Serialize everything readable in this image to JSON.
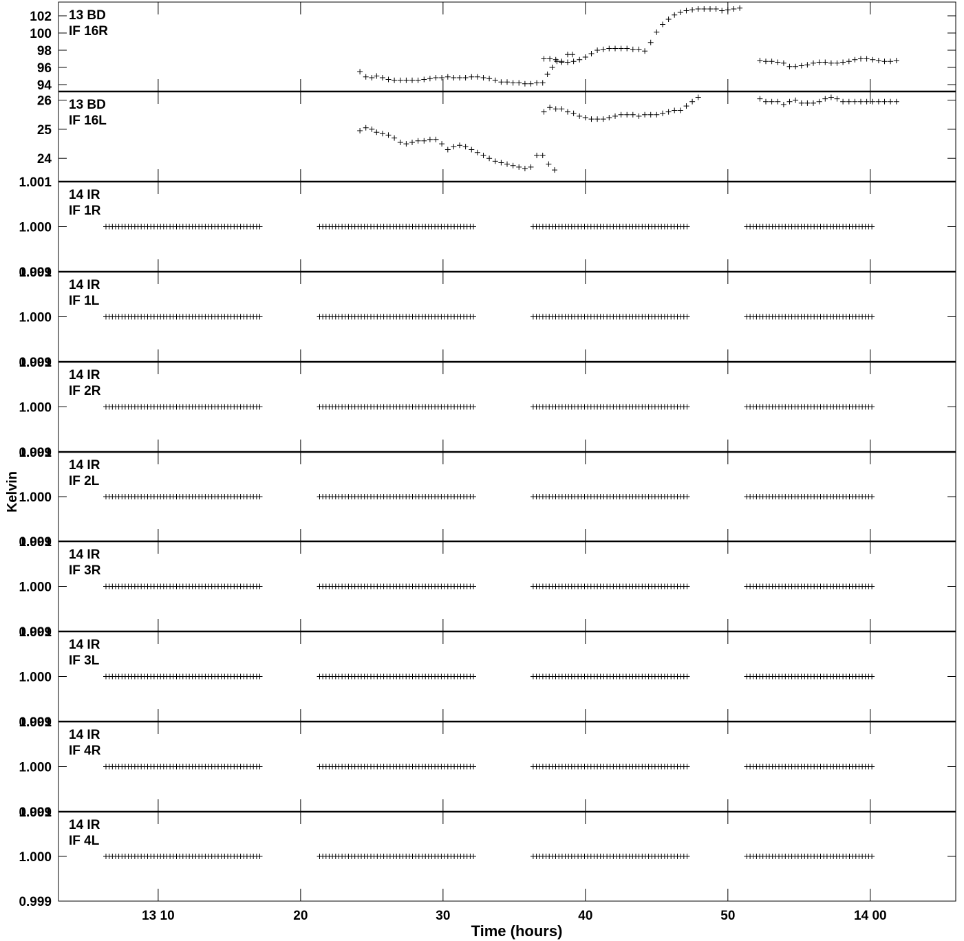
{
  "chart_data": {
    "type": "scatter",
    "xlabel": "Time (hours)",
    "ylabel": "Kelvin",
    "xlim": [
      "13:03",
      "14:06"
    ],
    "x_ticks": [
      {
        "time": "13:10",
        "label": "13 10"
      },
      {
        "time": "13:20",
        "label": "20"
      },
      {
        "time": "13:30",
        "label": "30"
      },
      {
        "time": "13:40",
        "label": "40"
      },
      {
        "time": "13:50",
        "label": "50"
      },
      {
        "time": "14:00",
        "label": "14 00"
      }
    ],
    "panels": [
      {
        "label": [
          "13 BD",
          "IF 16R"
        ],
        "ylim": [
          93.2,
          103.6
        ],
        "ticks": [
          {
            "value": 94,
            "label": "94"
          },
          {
            "value": 96,
            "label": "96"
          },
          {
            "value": 98,
            "label": "98"
          },
          {
            "value": 100,
            "label": "100"
          },
          {
            "value": 102,
            "label": "102"
          }
        ],
        "points": [
          [
            "13:24:10",
            95.5
          ],
          [
            "13:24:35",
            94.9
          ],
          [
            "13:25:00",
            94.8
          ],
          [
            "13:25:20",
            95.0
          ],
          [
            "13:25:45",
            94.8
          ],
          [
            "13:26:10",
            94.6
          ],
          [
            "13:26:35",
            94.5
          ],
          [
            "13:27:00",
            94.5
          ],
          [
            "13:27:25",
            94.5
          ],
          [
            "13:27:50",
            94.5
          ],
          [
            "13:28:15",
            94.5
          ],
          [
            "13:28:40",
            94.6
          ],
          [
            "13:29:05",
            94.7
          ],
          [
            "13:29:30",
            94.8
          ],
          [
            "13:29:55",
            94.8
          ],
          [
            "13:30:20",
            94.9
          ],
          [
            "13:30:45",
            94.8
          ],
          [
            "13:31:10",
            94.8
          ],
          [
            "13:31:35",
            94.8
          ],
          [
            "13:32:00",
            94.9
          ],
          [
            "13:32:25",
            94.9
          ],
          [
            "13:32:50",
            94.8
          ],
          [
            "13:33:15",
            94.7
          ],
          [
            "13:33:40",
            94.5
          ],
          [
            "13:34:05",
            94.3
          ],
          [
            "13:34:30",
            94.3
          ],
          [
            "13:34:55",
            94.2
          ],
          [
            "13:35:20",
            94.2
          ],
          [
            "13:35:45",
            94.1
          ],
          [
            "13:36:10",
            94.1
          ],
          [
            "13:36:35",
            94.2
          ],
          [
            "13:37:00",
            94.2
          ],
          [
            "13:37:20",
            95.2
          ],
          [
            "13:37:40",
            96.0
          ],
          [
            "13:38:00",
            96.7
          ],
          [
            "13:38:20",
            96.7
          ],
          [
            "13:38:45",
            97.5
          ],
          [
            "13:39:05",
            97.5
          ],
          [
            "13:37:05",
            97.0
          ],
          [
            "13:37:30",
            97.0
          ],
          [
            "13:37:55",
            96.9
          ],
          [
            "13:38:20",
            96.6
          ],
          [
            "13:38:45",
            96.6
          ],
          [
            "13:39:10",
            96.7
          ],
          [
            "13:39:35",
            96.9
          ],
          [
            "13:40:00",
            97.2
          ],
          [
            "13:40:25",
            97.6
          ],
          [
            "13:40:50",
            98.0
          ],
          [
            "13:41:15",
            98.1
          ],
          [
            "13:41:40",
            98.2
          ],
          [
            "13:42:05",
            98.2
          ],
          [
            "13:42:30",
            98.2
          ],
          [
            "13:42:55",
            98.2
          ],
          [
            "13:43:20",
            98.1
          ],
          [
            "13:43:45",
            98.1
          ],
          [
            "13:44:10",
            97.9
          ],
          [
            "13:44:35",
            98.9
          ],
          [
            "13:45:00",
            100.1
          ],
          [
            "13:45:25",
            101.0
          ],
          [
            "13:45:50",
            101.6
          ],
          [
            "13:46:15",
            102.1
          ],
          [
            "13:46:40",
            102.4
          ],
          [
            "13:47:05",
            102.6
          ],
          [
            "13:47:30",
            102.7
          ],
          [
            "13:47:55",
            102.8
          ],
          [
            "13:48:20",
            102.8
          ],
          [
            "13:48:45",
            102.8
          ],
          [
            "13:49:10",
            102.8
          ],
          [
            "13:49:35",
            102.6
          ],
          [
            "13:50:00",
            102.7
          ],
          [
            "13:50:25",
            102.8
          ],
          [
            "13:50:50",
            102.9
          ],
          [
            "13:52:15",
            96.8
          ],
          [
            "13:52:40",
            96.7
          ],
          [
            "13:53:05",
            96.7
          ],
          [
            "13:53:30",
            96.6
          ],
          [
            "13:53:55",
            96.5
          ],
          [
            "13:54:20",
            96.1
          ],
          [
            "13:54:45",
            96.1
          ],
          [
            "13:55:10",
            96.2
          ],
          [
            "13:55:35",
            96.3
          ],
          [
            "13:56:00",
            96.5
          ],
          [
            "13:56:25",
            96.6
          ],
          [
            "13:56:50",
            96.6
          ],
          [
            "13:57:15",
            96.5
          ],
          [
            "13:57:40",
            96.5
          ],
          [
            "13:58:05",
            96.6
          ],
          [
            "13:58:30",
            96.7
          ],
          [
            "13:58:55",
            96.9
          ],
          [
            "13:59:20",
            97.0
          ],
          [
            "13:59:45",
            97.0
          ],
          [
            "14:00:10",
            96.9
          ],
          [
            "14:00:35",
            96.8
          ],
          [
            "14:01:00",
            96.7
          ],
          [
            "14:01:25",
            96.7
          ],
          [
            "14:01:50",
            96.8
          ]
        ]
      },
      {
        "label": [
          "13 BD",
          "IF 16L"
        ],
        "ylim": [
          23.2,
          26.3
        ],
        "ticks": [
          {
            "value": 24,
            "label": "24"
          },
          {
            "value": 25,
            "label": "25"
          },
          {
            "value": 26,
            "label": "26"
          }
        ],
        "points": [
          [
            "13:24:10",
            24.95
          ],
          [
            "13:24:35",
            25.05
          ],
          [
            "13:25:00",
            25.0
          ],
          [
            "13:25:20",
            24.9
          ],
          [
            "13:25:45",
            24.85
          ],
          [
            "13:26:10",
            24.8
          ],
          [
            "13:26:35",
            24.7
          ],
          [
            "13:27:00",
            24.55
          ],
          [
            "13:27:25",
            24.5
          ],
          [
            "13:27:50",
            24.55
          ],
          [
            "13:28:15",
            24.6
          ],
          [
            "13:28:40",
            24.6
          ],
          [
            "13:29:05",
            24.65
          ],
          [
            "13:29:30",
            24.65
          ],
          [
            "13:29:55",
            24.5
          ],
          [
            "13:30:20",
            24.3
          ],
          [
            "13:30:45",
            24.4
          ],
          [
            "13:31:10",
            24.45
          ],
          [
            "13:31:35",
            24.4
          ],
          [
            "13:32:00",
            24.3
          ],
          [
            "13:32:25",
            24.2
          ],
          [
            "13:32:50",
            24.1
          ],
          [
            "13:33:15",
            24.0
          ],
          [
            "13:33:40",
            23.9
          ],
          [
            "13:34:05",
            23.85
          ],
          [
            "13:34:30",
            23.8
          ],
          [
            "13:34:55",
            23.75
          ],
          [
            "13:35:20",
            23.7
          ],
          [
            "13:35:45",
            23.65
          ],
          [
            "13:36:10",
            23.7
          ],
          [
            "13:36:35",
            24.1
          ],
          [
            "13:37:00",
            24.1
          ],
          [
            "13:37:25",
            23.8
          ],
          [
            "13:37:50",
            23.6
          ],
          [
            "13:37:05",
            25.6
          ],
          [
            "13:37:30",
            25.75
          ],
          [
            "13:37:55",
            25.7
          ],
          [
            "13:38:20",
            25.7
          ],
          [
            "13:38:45",
            25.6
          ],
          [
            "13:39:10",
            25.55
          ],
          [
            "13:39:35",
            25.45
          ],
          [
            "13:40:00",
            25.4
          ],
          [
            "13:40:25",
            25.35
          ],
          [
            "13:40:50",
            25.35
          ],
          [
            "13:41:15",
            25.35
          ],
          [
            "13:41:40",
            25.4
          ],
          [
            "13:42:05",
            25.45
          ],
          [
            "13:42:30",
            25.5
          ],
          [
            "13:42:55",
            25.5
          ],
          [
            "13:43:20",
            25.5
          ],
          [
            "13:43:45",
            25.45
          ],
          [
            "13:44:10",
            25.5
          ],
          [
            "13:44:35",
            25.5
          ],
          [
            "13:45:00",
            25.5
          ],
          [
            "13:45:25",
            25.55
          ],
          [
            "13:45:50",
            25.6
          ],
          [
            "13:46:15",
            25.65
          ],
          [
            "13:46:40",
            25.65
          ],
          [
            "13:47:05",
            25.8
          ],
          [
            "13:47:30",
            25.95
          ],
          [
            "13:47:55",
            26.1
          ],
          [
            "13:52:15",
            26.05
          ],
          [
            "13:52:40",
            25.95
          ],
          [
            "13:53:05",
            25.95
          ],
          [
            "13:53:30",
            25.95
          ],
          [
            "13:53:55",
            25.85
          ],
          [
            "13:54:20",
            25.95
          ],
          [
            "13:54:45",
            26.0
          ],
          [
            "13:55:10",
            25.9
          ],
          [
            "13:55:35",
            25.9
          ],
          [
            "13:56:00",
            25.9
          ],
          [
            "13:56:25",
            25.95
          ],
          [
            "13:56:50",
            26.05
          ],
          [
            "13:57:15",
            26.1
          ],
          [
            "13:57:40",
            26.05
          ],
          [
            "13:58:05",
            25.95
          ],
          [
            "13:58:30",
            25.95
          ],
          [
            "13:58:55",
            25.95
          ],
          [
            "13:59:20",
            25.95
          ],
          [
            "13:59:45",
            25.95
          ],
          [
            "14:00:10",
            25.95
          ],
          [
            "14:00:35",
            25.95
          ],
          [
            "14:01:00",
            25.95
          ],
          [
            "14:01:25",
            25.95
          ],
          [
            "14:01:50",
            25.95
          ]
        ]
      },
      {
        "label": [
          "14 IR",
          "IF 1R"
        ],
        "ylim": [
          0.999,
          1.001
        ],
        "ticks": [
          {
            "value": 1.001,
            "label": "1.001"
          },
          {
            "value": 1.0,
            "label": "1.000"
          },
          {
            "value": 0.999,
            "label": "0.999"
          }
        ],
        "constant": 1.0
      },
      {
        "label": [
          "14 IR",
          "IF 1L"
        ],
        "ylim": [
          0.999,
          1.001
        ],
        "ticks": [
          {
            "value": 1.001,
            "label": "1.001"
          },
          {
            "value": 1.0,
            "label": "1.000"
          },
          {
            "value": 0.999,
            "label": "0.999"
          }
        ],
        "constant": 1.0
      },
      {
        "label": [
          "14 IR",
          "IF 2R"
        ],
        "ylim": [
          0.999,
          1.001
        ],
        "ticks": [
          {
            "value": 1.001,
            "label": "1.001"
          },
          {
            "value": 1.0,
            "label": "1.000"
          },
          {
            "value": 0.999,
            "label": "0.999"
          }
        ],
        "constant": 1.0
      },
      {
        "label": [
          "14 IR",
          "IF 2L"
        ],
        "ylim": [
          0.999,
          1.001
        ],
        "ticks": [
          {
            "value": 1.001,
            "label": "1.001"
          },
          {
            "value": 1.0,
            "label": "1.000"
          },
          {
            "value": 0.999,
            "label": "0.999"
          }
        ],
        "constant": 1.0
      },
      {
        "label": [
          "14 IR",
          "IF 3R"
        ],
        "ylim": [
          0.999,
          1.001
        ],
        "ticks": [
          {
            "value": 1.001,
            "label": "1.001"
          },
          {
            "value": 1.0,
            "label": "1.000"
          },
          {
            "value": 0.999,
            "label": "0.999"
          }
        ],
        "constant": 1.0
      },
      {
        "label": [
          "14 IR",
          "IF 3L"
        ],
        "ylim": [
          0.999,
          1.001
        ],
        "ticks": [
          {
            "value": 1.001,
            "label": "1.001"
          },
          {
            "value": 1.0,
            "label": "1.000"
          },
          {
            "value": 0.999,
            "label": "0.999"
          }
        ],
        "constant": 1.0
      },
      {
        "label": [
          "14 IR",
          "IF 4R"
        ],
        "ylim": [
          0.999,
          1.001
        ],
        "ticks": [
          {
            "value": 1.001,
            "label": "1.001"
          },
          {
            "value": 1.0,
            "label": "1.000"
          },
          {
            "value": 0.999,
            "label": "0.999"
          }
        ],
        "constant": 1.0
      },
      {
        "label": [
          "14 IR",
          "IF 4L"
        ],
        "ylim": [
          0.999,
          1.001
        ],
        "ticks": [
          {
            "value": 1.001,
            "label": "1.001"
          },
          {
            "value": 1.0,
            "label": "1.000"
          },
          {
            "value": 0.999,
            "label": "0.999"
          }
        ],
        "constant": 1.0
      }
    ],
    "constant_scans": [
      {
        "start": "13:06:20",
        "end": "13:17:10",
        "step_seconds": 13.5
      },
      {
        "start": "13:21:20",
        "end": "13:32:10",
        "step_seconds": 13.5
      },
      {
        "start": "13:36:20",
        "end": "13:47:10",
        "step_seconds": 13.5
      },
      {
        "start": "13:51:20",
        "end": "14:00:10",
        "step_seconds": 13.5
      }
    ]
  }
}
